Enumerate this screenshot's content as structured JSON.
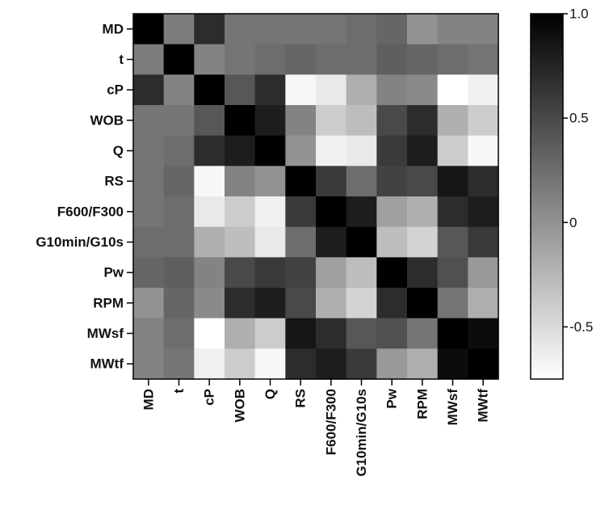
{
  "chart_data": {
    "type": "heatmap",
    "title": "",
    "xlabel": "",
    "ylabel": "",
    "variables": [
      "MD",
      "t",
      "cP",
      "WOB",
      "Q",
      "RS",
      "F600/F300",
      "G10min/G10s",
      "Pw",
      "RPM",
      "MWsf",
      "MWtf"
    ],
    "matrix": [
      [
        1.0,
        0.15,
        0.7,
        0.2,
        0.2,
        0.2,
        0.2,
        0.25,
        0.3,
        0.0,
        0.1,
        0.1
      ],
      [
        0.15,
        1.0,
        0.1,
        0.2,
        0.25,
        0.3,
        0.25,
        0.25,
        0.35,
        0.3,
        0.25,
        0.2
      ],
      [
        0.7,
        0.1,
        1.0,
        0.4,
        0.7,
        -0.7,
        -0.6,
        -0.2,
        0.1,
        0.05,
        -0.75,
        -0.65
      ],
      [
        0.2,
        0.2,
        0.4,
        1.0,
        0.8,
        0.1,
        -0.4,
        -0.3,
        0.5,
        0.7,
        -0.2,
        -0.4
      ],
      [
        0.2,
        0.25,
        0.7,
        0.8,
        1.0,
        0.0,
        -0.65,
        -0.6,
        0.6,
        0.8,
        -0.4,
        -0.7
      ],
      [
        0.2,
        0.3,
        -0.7,
        0.1,
        0.0,
        1.0,
        0.6,
        0.25,
        0.55,
        0.5,
        0.85,
        0.7
      ],
      [
        0.2,
        0.25,
        -0.6,
        -0.4,
        -0.65,
        0.6,
        1.0,
        0.8,
        -0.1,
        -0.2,
        0.7,
        0.8
      ],
      [
        0.25,
        0.25,
        -0.2,
        -0.3,
        -0.6,
        0.25,
        0.8,
        1.0,
        -0.3,
        -0.45,
        0.4,
        0.6
      ],
      [
        0.3,
        0.35,
        0.1,
        0.5,
        0.6,
        0.55,
        -0.1,
        -0.3,
        1.0,
        0.7,
        0.45,
        -0.05
      ],
      [
        0.0,
        0.3,
        0.05,
        0.7,
        0.8,
        0.5,
        -0.2,
        -0.45,
        0.7,
        1.0,
        0.2,
        -0.2
      ],
      [
        0.1,
        0.25,
        -0.75,
        -0.2,
        -0.4,
        0.85,
        0.7,
        0.4,
        0.45,
        0.2,
        1.0,
        0.92
      ],
      [
        0.1,
        0.2,
        -0.65,
        -0.4,
        -0.7,
        0.7,
        0.8,
        0.6,
        -0.05,
        -0.2,
        0.92,
        1.0
      ]
    ],
    "color_range": [
      -0.75,
      1.0
    ],
    "colormap": {
      "low": "#ffffff",
      "high": "#000000"
    },
    "colorbar": {
      "ticks": [
        1.0,
        0.5,
        0,
        -0.5
      ],
      "tick_labels": [
        "1.0",
        "0.5",
        "0",
        "-0.5"
      ]
    }
  }
}
